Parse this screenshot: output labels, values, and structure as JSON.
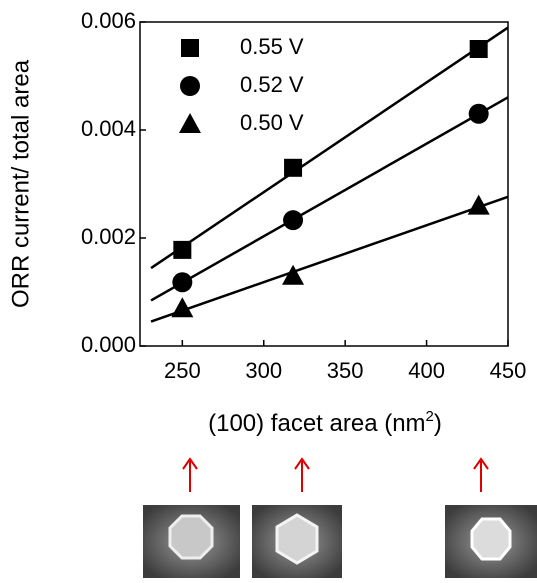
{
  "chart_data": {
    "type": "scatter",
    "ylabel": "ORR current/  total  area",
    "xlabel": "(100) facet area (nm",
    "xlabel_sup": "2",
    "xlabel_end": ")",
    "x": [
      250,
      318,
      432
    ],
    "series": [
      {
        "name": "0.55 V",
        "marker": "square",
        "color": "#000000",
        "values": [
          0.00178,
          0.0033,
          0.0055
        ]
      },
      {
        "name": "0.52 V",
        "marker": "circle",
        "color": "#000000",
        "values": [
          0.00118,
          0.00233,
          0.0043
        ]
      },
      {
        "name": "0.50 V",
        "marker": "triangle",
        "color": "#000000",
        "values": [
          0.0007,
          0.0013,
          0.0026
        ]
      }
    ],
    "fit_lines": true,
    "xlim": [
      224,
      450
    ],
    "ylim": [
      0,
      0.006
    ],
    "xticks": [
      250,
      300,
      350,
      400,
      450
    ],
    "yticks": [
      {
        "value": 0,
        "label": "0.000"
      },
      0.002,
      0.004,
      0.006
    ]
  }
}
